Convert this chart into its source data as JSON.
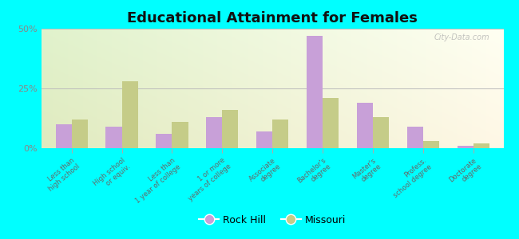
{
  "title": "Educational Attainment for Females",
  "background_color": "#00FFFF",
  "categories": [
    "Less than\nhigh school",
    "High school\nor equiv.",
    "Less than\n1 year of college",
    "1 or more\nyears of college",
    "Associate\ndegree",
    "Bachelor's\ndegree",
    "Master's\ndegree",
    "Profess.\nschool degree",
    "Doctorate\ndegree"
  ],
  "rock_hill": [
    10,
    9,
    6,
    13,
    7,
    47,
    19,
    9,
    1
  ],
  "missouri": [
    12,
    28,
    11,
    16,
    12,
    21,
    13,
    3,
    2
  ],
  "rock_hill_color": "#c8a0d8",
  "missouri_color": "#c5cc88",
  "ylim": [
    0,
    50
  ],
  "yticks": [
    0,
    25,
    50
  ],
  "ytick_labels": [
    "0%",
    "25%",
    "50%"
  ],
  "legend_rock_hill": "Rock Hill",
  "legend_missouri": "Missouri",
  "bar_width": 0.32,
  "watermark": "City-Data.com"
}
